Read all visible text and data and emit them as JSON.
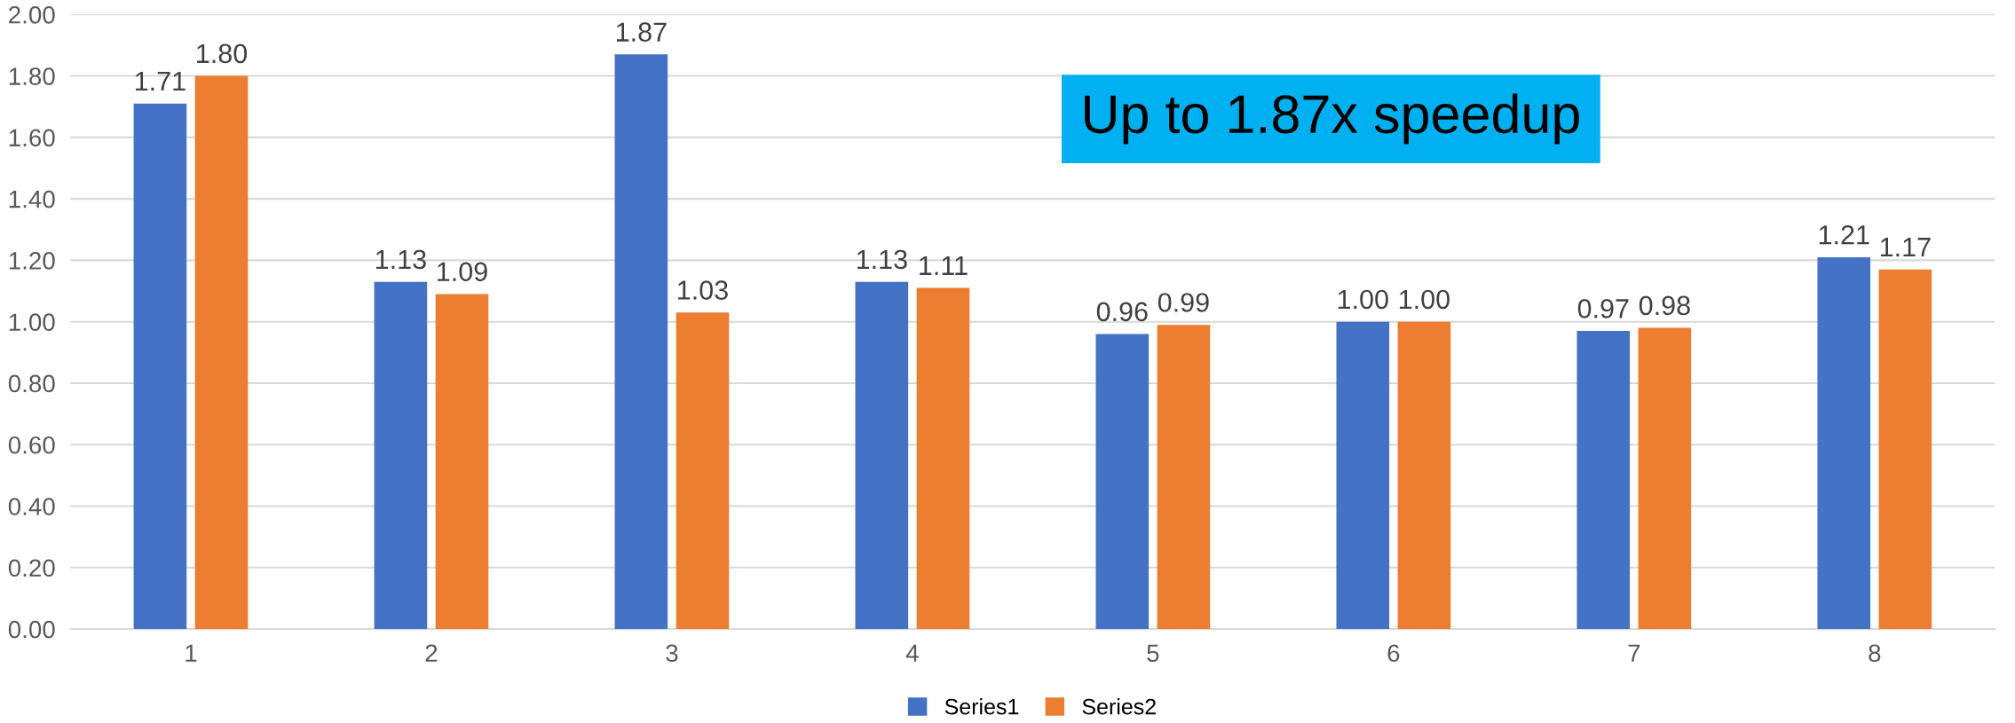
{
  "chart_data": {
    "type": "bar",
    "categories": [
      "1",
      "2",
      "3",
      "4",
      "5",
      "6",
      "7",
      "8"
    ],
    "series": [
      {
        "name": "Series1",
        "color": "#4472c4",
        "values": [
          1.71,
          1.13,
          1.87,
          1.13,
          0.96,
          1.0,
          0.97,
          1.21
        ],
        "value_labels": [
          "1.71",
          "1.13",
          "1.87",
          "1.13",
          "0.96",
          "1.00",
          "0.97",
          "1.21"
        ]
      },
      {
        "name": "Series2",
        "color": "#ed7d31",
        "values": [
          1.8,
          1.09,
          1.03,
          1.11,
          0.99,
          1.0,
          0.98,
          1.17
        ],
        "value_labels": [
          "1.80",
          "1.09",
          "1.03",
          "1.11",
          "0.99",
          "1.00",
          "0.98",
          "1.17"
        ]
      }
    ],
    "ylim": [
      0,
      2
    ],
    "yticks": [
      {
        "value": 0,
        "label": "0.00"
      },
      {
        "value": 0.2,
        "label": "0.20"
      },
      {
        "value": 0.4,
        "label": "0.40"
      },
      {
        "value": 0.6,
        "label": "0.60"
      },
      {
        "value": 0.8,
        "label": "0.80"
      },
      {
        "value": 1.0,
        "label": "1.00"
      },
      {
        "value": 1.2,
        "label": "1.20"
      },
      {
        "value": 1.4,
        "label": "1.40"
      },
      {
        "value": 1.6,
        "label": "1.60"
      },
      {
        "value": 1.8,
        "label": "1.80"
      },
      {
        "value": 2.0,
        "label": "2.00"
      }
    ],
    "grid": "y",
    "legend": "bottom",
    "annotations": [
      "Up to 1.87x speedup"
    ]
  }
}
